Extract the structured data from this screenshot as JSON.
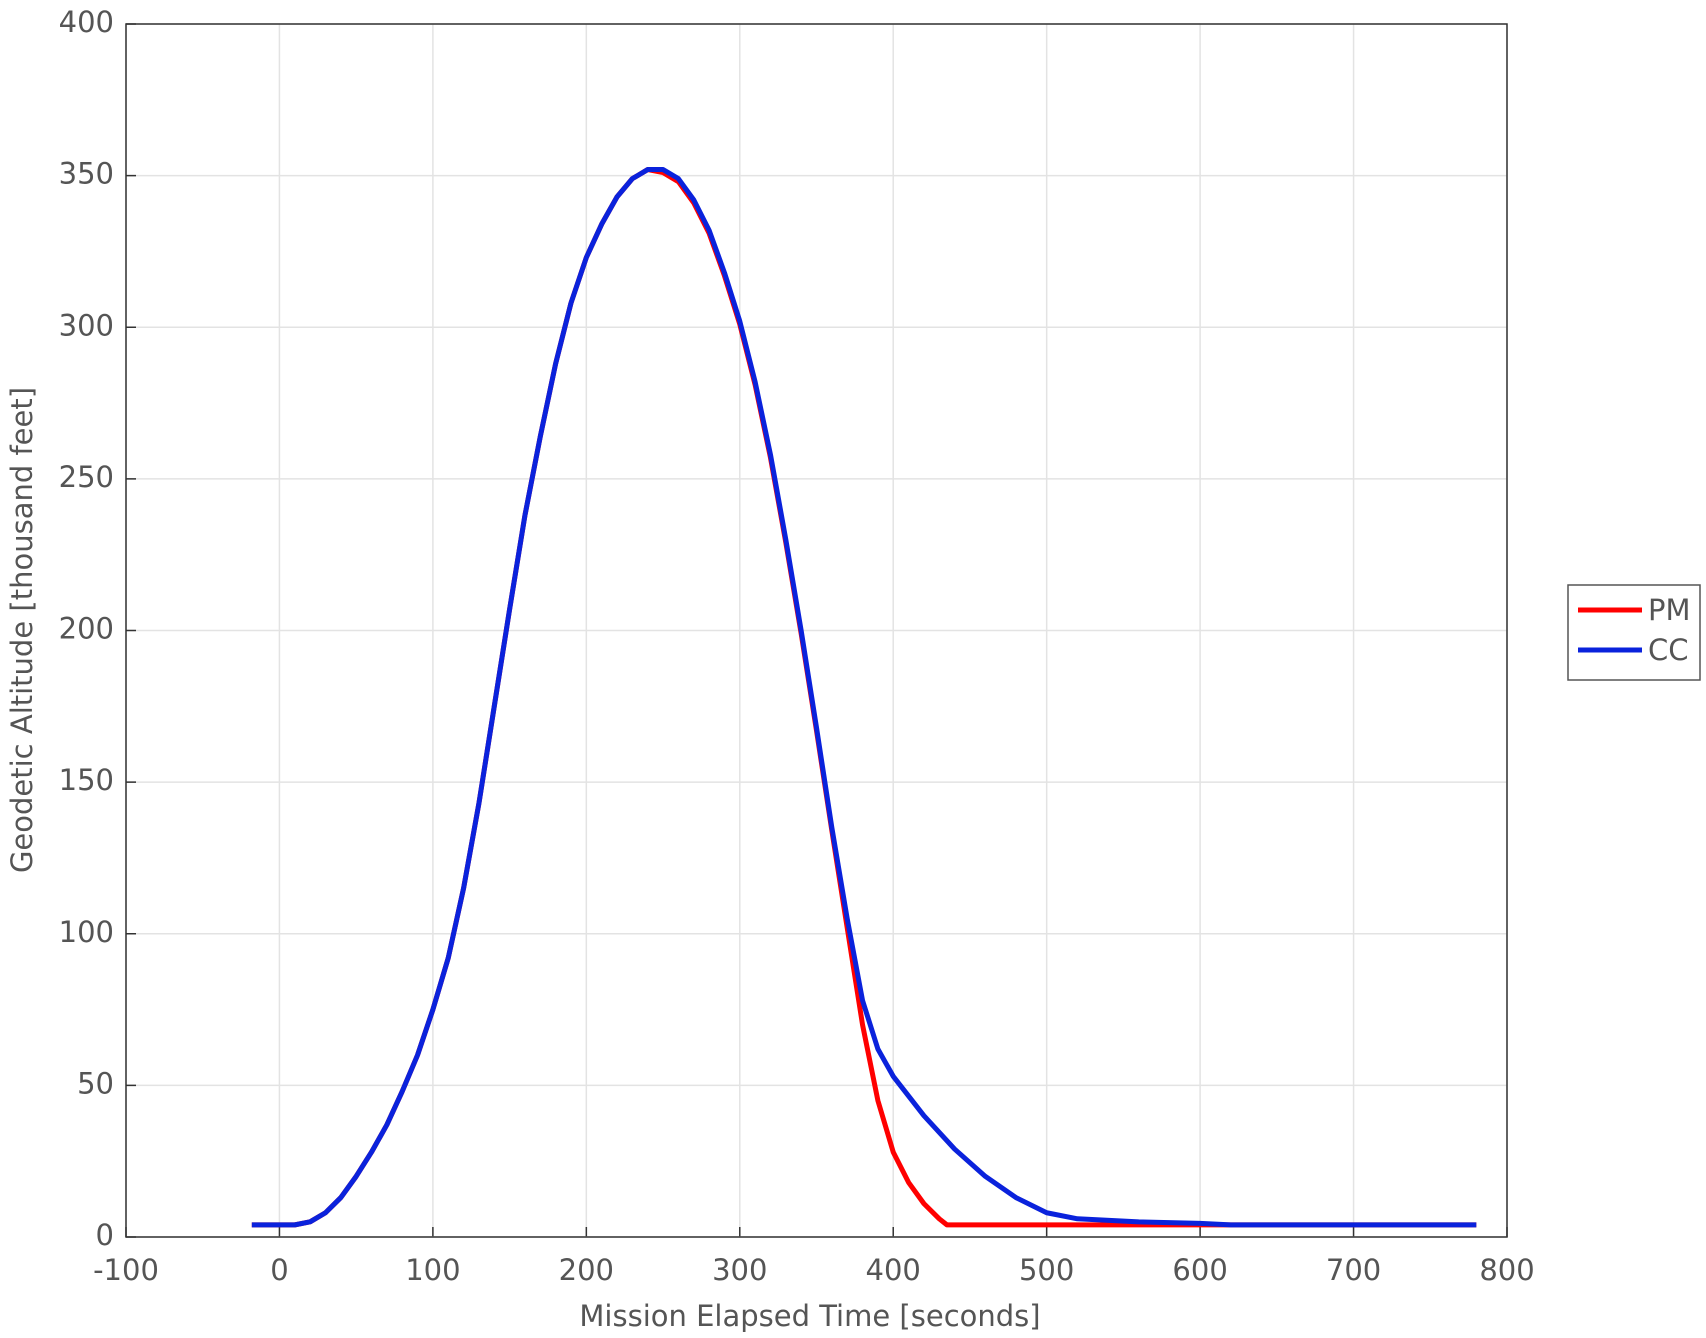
{
  "chart_data": {
    "type": "line",
    "xlabel": "Mission Elapsed Time [seconds]",
    "ylabel": "Geodetic Altitude  [thousand feet]",
    "xlim": [
      -100,
      800
    ],
    "xticks": [
      -100,
      0,
      100,
      200,
      300,
      400,
      500,
      600,
      700,
      800
    ],
    "ylim": [
      0,
      400
    ],
    "yticks": [
      0,
      50,
      100,
      150,
      200,
      250,
      300,
      350,
      400
    ],
    "grid": true,
    "legend": "outside-right",
    "series": [
      {
        "name": "PM",
        "color": "#ff0000",
        "x": [
          -18,
          0,
          10,
          20,
          30,
          40,
          50,
          60,
          70,
          80,
          90,
          100,
          110,
          120,
          130,
          140,
          150,
          160,
          170,
          180,
          190,
          200,
          210,
          220,
          230,
          240,
          250,
          260,
          270,
          280,
          290,
          300,
          310,
          320,
          330,
          340,
          350,
          360,
          370,
          380,
          390,
          400,
          410,
          420,
          430,
          435,
          500,
          600,
          780
        ],
        "values": [
          4,
          4,
          4,
          5,
          8,
          13,
          20,
          28,
          37,
          48,
          60,
          75,
          92,
          115,
          143,
          175,
          207,
          238,
          264,
          288,
          308,
          323,
          334,
          343,
          349,
          352,
          351,
          348,
          341,
          331,
          317,
          301,
          281,
          257,
          229,
          199,
          167,
          134,
          102,
          70,
          45,
          28,
          18,
          11,
          6,
          4,
          4,
          4,
          4
        ]
      },
      {
        "name": "CC",
        "color": "#0a22dc",
        "x": [
          -18,
          0,
          10,
          20,
          30,
          40,
          50,
          60,
          70,
          80,
          90,
          100,
          110,
          120,
          130,
          140,
          150,
          160,
          170,
          180,
          190,
          200,
          210,
          220,
          230,
          240,
          250,
          260,
          270,
          280,
          290,
          300,
          310,
          320,
          330,
          340,
          350,
          360,
          370,
          380,
          390,
          400,
          420,
          440,
          460,
          480,
          500,
          520,
          560,
          600,
          620,
          700,
          780
        ],
        "values": [
          4,
          4,
          4,
          5,
          8,
          13,
          20,
          28,
          37,
          48,
          60,
          75,
          92,
          115,
          143,
          175,
          207,
          238,
          264,
          288,
          308,
          323,
          334,
          343,
          349,
          352,
          352,
          349,
          342,
          332,
          318,
          302,
          282,
          258,
          230,
          200,
          168,
          135,
          105,
          78,
          62,
          53,
          40,
          29,
          20,
          13,
          8,
          6,
          5,
          4.5,
          4,
          4,
          4
        ]
      }
    ]
  }
}
